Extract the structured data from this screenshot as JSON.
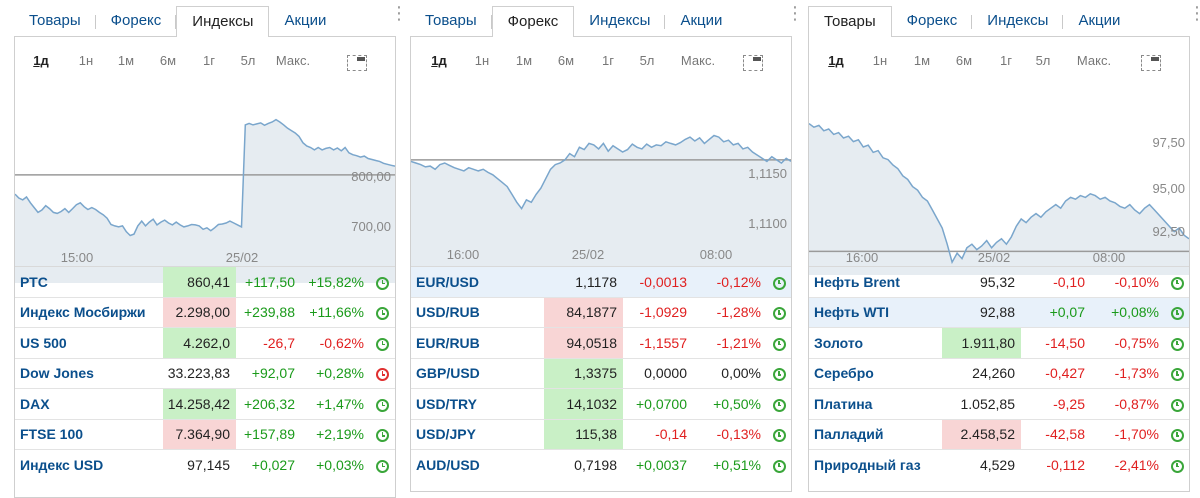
{
  "widgets": [
    {
      "tabs": [
        "Товары",
        "Форекс",
        "Индексы",
        "Акции"
      ],
      "active_tab": 2,
      "ranges": [
        "1д",
        "1н",
        "1м",
        "6м",
        "1г",
        "5л",
        "Макс."
      ],
      "active_range": 0,
      "x_ticks": [
        "15:00",
        "25/02"
      ],
      "y_ticks": [
        "800,00",
        "700,00"
      ],
      "chart_data": {
        "type": "area",
        "ylim": [
          640,
          960
        ],
        "y_ticks": [
          800,
          700
        ],
        "reference_line": 848,
        "values": [
          808,
          800,
          796,
          802,
          790,
          780,
          770,
          775,
          784,
          778,
          770,
          768,
          772,
          778,
          770,
          778,
          786,
          790,
          782,
          776,
          780,
          776,
          770,
          765,
          758,
          745,
          742,
          740,
          742,
          730,
          722,
          725,
          742,
          752,
          742,
          750,
          756,
          744,
          750,
          754,
          748,
          744,
          750,
          744,
          740,
          742,
          745,
          744,
          742,
          735,
          738,
          732,
          738,
          745,
          746,
          748,
          752,
          748,
          744,
          740,
          952,
          955,
          952,
          954,
          956,
          951,
          955,
          958,
          963,
          958,
          952,
          945,
          940,
          935,
          928,
          915,
          908,
          905,
          900,
          905,
          900,
          903,
          905,
          900,
          904,
          898,
          905,
          894,
          890,
          888,
          885,
          887,
          882,
          880,
          878,
          876,
          872,
          870,
          868,
          866
        ]
      },
      "rows": [
        {
          "name": "РТС",
          "price": "860,41",
          "change": "+117,50",
          "pct": "+15,82%",
          "dir": "up",
          "hl": false,
          "open": true
        },
        {
          "name": "Индекс Мосбиржи",
          "price": "2.298,00",
          "change": "+239,88",
          "pct": "+11,66%",
          "dir": "down",
          "hl": false,
          "open": true
        },
        {
          "name": "US 500",
          "price": "4.262,0",
          "change": "-26,7",
          "pct": "-0,62%",
          "dir": "up",
          "hl": false,
          "open": true
        },
        {
          "name": "Dow Jones",
          "price": "33.223,83",
          "change": "+92,07",
          "pct": "+0,28%",
          "dir": "none",
          "hl": false,
          "open": false
        },
        {
          "name": "DAX",
          "price": "14.258,42",
          "change": "+206,32",
          "pct": "+1,47%",
          "dir": "up",
          "hl": false,
          "open": true
        },
        {
          "name": "FTSE 100",
          "price": "7.364,90",
          "change": "+157,89",
          "pct": "+2,19%",
          "dir": "down",
          "hl": false,
          "open": true
        },
        {
          "name": "Индекс USD",
          "price": "97,145",
          "change": "+0,027",
          "pct": "+0,03%",
          "dir": "none",
          "hl": false,
          "open": true
        }
      ]
    },
    {
      "tabs": [
        "Товары",
        "Форекс",
        "Индексы",
        "Акции"
      ],
      "active_tab": 1,
      "ranges": [
        "1д",
        "1н",
        "1м",
        "6м",
        "1г",
        "5л",
        "Макс."
      ],
      "active_range": 0,
      "x_ticks": [
        "16:00",
        "25/02",
        "08:00"
      ],
      "y_ticks": [
        "1,1150",
        "1,1100"
      ],
      "chart_data": {
        "type": "area",
        "ylim": [
          1.103,
          1.1226
        ],
        "y_ticks": [
          1.115,
          1.11
        ],
        "reference_line": 1.1174,
        "values": [
          1.1172,
          1.117,
          1.1168,
          1.1165,
          1.1166,
          1.1162,
          1.1168,
          1.117,
          1.1167,
          1.1164,
          1.1162,
          1.116,
          1.1164,
          1.1162,
          1.116,
          1.1162,
          1.1158,
          1.1155,
          1.115,
          1.1145,
          1.114,
          1.113,
          1.112,
          1.1112,
          1.1123,
          1.112,
          1.113,
          1.1138,
          1.115,
          1.1162,
          1.1168,
          1.117,
          1.1174,
          1.1182,
          1.1178,
          1.119,
          1.1187,
          1.1195,
          1.1193,
          1.1188,
          1.1195,
          1.1185,
          1.1192,
          1.1188,
          1.1184,
          1.1187,
          1.1194,
          1.119,
          1.1188,
          1.1194,
          1.119,
          1.1193,
          1.1192,
          1.1197,
          1.1195,
          1.1193,
          1.1196,
          1.12,
          1.1203,
          1.1198,
          1.1202,
          1.1195,
          1.12,
          1.1205,
          1.1203,
          1.1197,
          1.1199,
          1.1193,
          1.1195,
          1.1188,
          1.119,
          1.1184,
          1.118,
          1.1176,
          1.1172,
          1.1178,
          1.1174,
          1.117,
          1.1176,
          1.1172
        ]
      },
      "rows": [
        {
          "name": "EUR/USD",
          "price": "1,1178",
          "change": "-0,0013",
          "pct": "-0,12%",
          "dir": "none",
          "hl": true,
          "open": true
        },
        {
          "name": "USD/RUB",
          "price": "84,1877",
          "change": "-1,0929",
          "pct": "-1,28%",
          "dir": "down",
          "hl": false,
          "open": true
        },
        {
          "name": "EUR/RUB",
          "price": "94,0518",
          "change": "-1,1557",
          "pct": "-1,21%",
          "dir": "down",
          "hl": false,
          "open": true
        },
        {
          "name": "GBP/USD",
          "price": "1,3375",
          "change": "0,0000",
          "pct": "0,00%",
          "dir": "up",
          "hl": false,
          "open": true
        },
        {
          "name": "USD/TRY",
          "price": "14,1032",
          "change": "+0,0700",
          "pct": "+0,50%",
          "dir": "up",
          "hl": false,
          "open": true
        },
        {
          "name": "USD/JPY",
          "price": "115,38",
          "change": "-0,14",
          "pct": "-0,13%",
          "dir": "up",
          "hl": false,
          "open": true
        },
        {
          "name": "AUD/USD",
          "price": "0,7198",
          "change": "+0,0037",
          "pct": "+0,51%",
          "dir": "none",
          "hl": false,
          "open": true
        }
      ]
    },
    {
      "tabs": [
        "Товары",
        "Форекс",
        "Индексы",
        "Акции"
      ],
      "active_tab": 0,
      "ranges": [
        "1д",
        "1н",
        "1м",
        "6м",
        "1г",
        "5л",
        "Макс."
      ],
      "active_range": 0,
      "x_ticks": [
        "16:00",
        "25/02",
        "08:00"
      ],
      "y_ticks": [
        "97,50",
        "95,00",
        "92,50"
      ],
      "chart_data": {
        "type": "area",
        "ylim": [
          91.0,
          100.0
        ],
        "y_ticks": [
          97.5,
          95,
          92.5
        ],
        "reference_line": 92.2,
        "values": [
          99.3,
          99.1,
          99.2,
          98.9,
          99.0,
          98.7,
          98.8,
          98.5,
          98.6,
          98.3,
          98.4,
          98.0,
          98.1,
          97.7,
          97.8,
          97.4,
          97.3,
          97.0,
          96.8,
          96.4,
          96.2,
          95.8,
          95.6,
          95.2,
          95.0,
          94.5,
          94.0,
          93.5,
          92.6,
          91.6,
          92.1,
          91.8,
          92.4,
          92.6,
          92.3,
          92.5,
          92.8,
          92.4,
          92.7,
          92.9,
          92.6,
          93.0,
          93.6,
          94.0,
          93.8,
          94.1,
          94.3,
          94.1,
          94.4,
          94.6,
          94.8,
          94.6,
          95.0,
          95.2,
          95.1,
          95.3,
          95.2,
          95.4,
          95.3,
          95.1,
          95.2,
          95.0,
          94.9,
          94.7,
          94.6,
          94.8,
          94.5,
          94.3,
          94.6,
          94.8,
          94.5,
          94.2,
          93.9,
          93.6,
          93.3,
          93.5,
          93.1,
          92.9
        ]
      },
      "rows": [
        {
          "name": "Нефть Brent",
          "price": "95,32",
          "change": "-0,10",
          "pct": "-0,10%",
          "dir": "none",
          "hl": false,
          "open": true
        },
        {
          "name": "Нефть WTI",
          "price": "92,88",
          "change": "+0,07",
          "pct": "+0,08%",
          "dir": "none",
          "hl": true,
          "open": true
        },
        {
          "name": "Золото",
          "price": "1.911,80",
          "change": "-14,50",
          "pct": "-0,75%",
          "dir": "up",
          "hl": false,
          "open": true
        },
        {
          "name": "Серебро",
          "price": "24,260",
          "change": "-0,427",
          "pct": "-1,73%",
          "dir": "none",
          "hl": false,
          "open": true
        },
        {
          "name": "Платина",
          "price": "1.052,85",
          "change": "-9,25",
          "pct": "-0,87%",
          "dir": "none",
          "hl": false,
          "open": true
        },
        {
          "name": "Палладий",
          "price": "2.458,52",
          "change": "-42,58",
          "pct": "-1,70%",
          "dir": "down",
          "hl": false,
          "open": true
        },
        {
          "name": "Природный газ",
          "price": "4,529",
          "change": "-0,112",
          "pct": "-2,41%",
          "dir": "none",
          "hl": false,
          "open": true
        }
      ]
    }
  ]
}
